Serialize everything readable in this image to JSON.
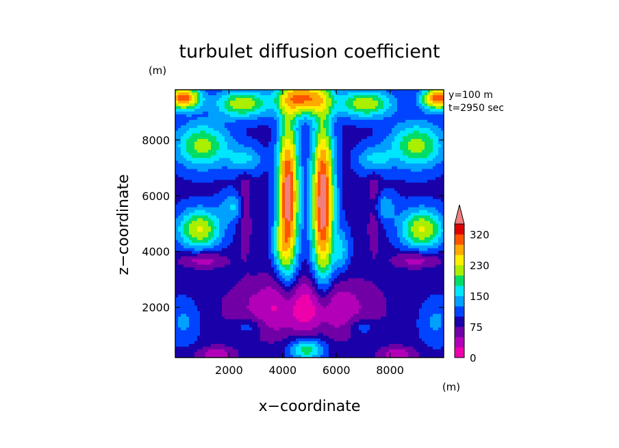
{
  "chart_data": {
    "type": "heatmap",
    "title": "turbulet diffusion coefficient",
    "xlabel": "x−coordinate",
    "ylabel": "z−coordinate",
    "x_unit": "(m)",
    "y_unit": "(m)",
    "xlim": [
      0,
      10000
    ],
    "ylim": [
      200,
      9800
    ],
    "xticks": [
      2000,
      4000,
      6000,
      8000
    ],
    "yticks": [
      2000,
      4000,
      6000,
      8000
    ],
    "xtick_labels": [
      "2000",
      "4000",
      "6000",
      "8000"
    ],
    "ytick_labels": [
      "2000",
      "4000",
      "6000",
      "8000"
    ],
    "annotations": [
      "y=100 m",
      "t=2950 sec"
    ],
    "colorbar": {
      "levels": [
        0,
        25,
        50,
        75,
        100,
        125,
        150,
        175,
        200,
        230,
        260,
        290,
        320
      ],
      "labeled_ticks": [
        {
          "value": 0,
          "label": "0"
        },
        {
          "value": 75,
          "label": "75"
        },
        {
          "value": 150,
          "label": "150"
        },
        {
          "value": 230,
          "label": "230"
        },
        {
          "value": 320,
          "label": "320"
        }
      ],
      "colors": [
        "#ee00aa",
        "#b300b8",
        "#7000a6",
        "#1a00a8",
        "#0044ff",
        "#00a0ff",
        "#00e6ff",
        "#00dd66",
        "#aaee00",
        "#ffee00",
        "#ffaa00",
        "#ff5500",
        "#dd0000"
      ],
      "extend_color": "#f08080"
    }
  }
}
